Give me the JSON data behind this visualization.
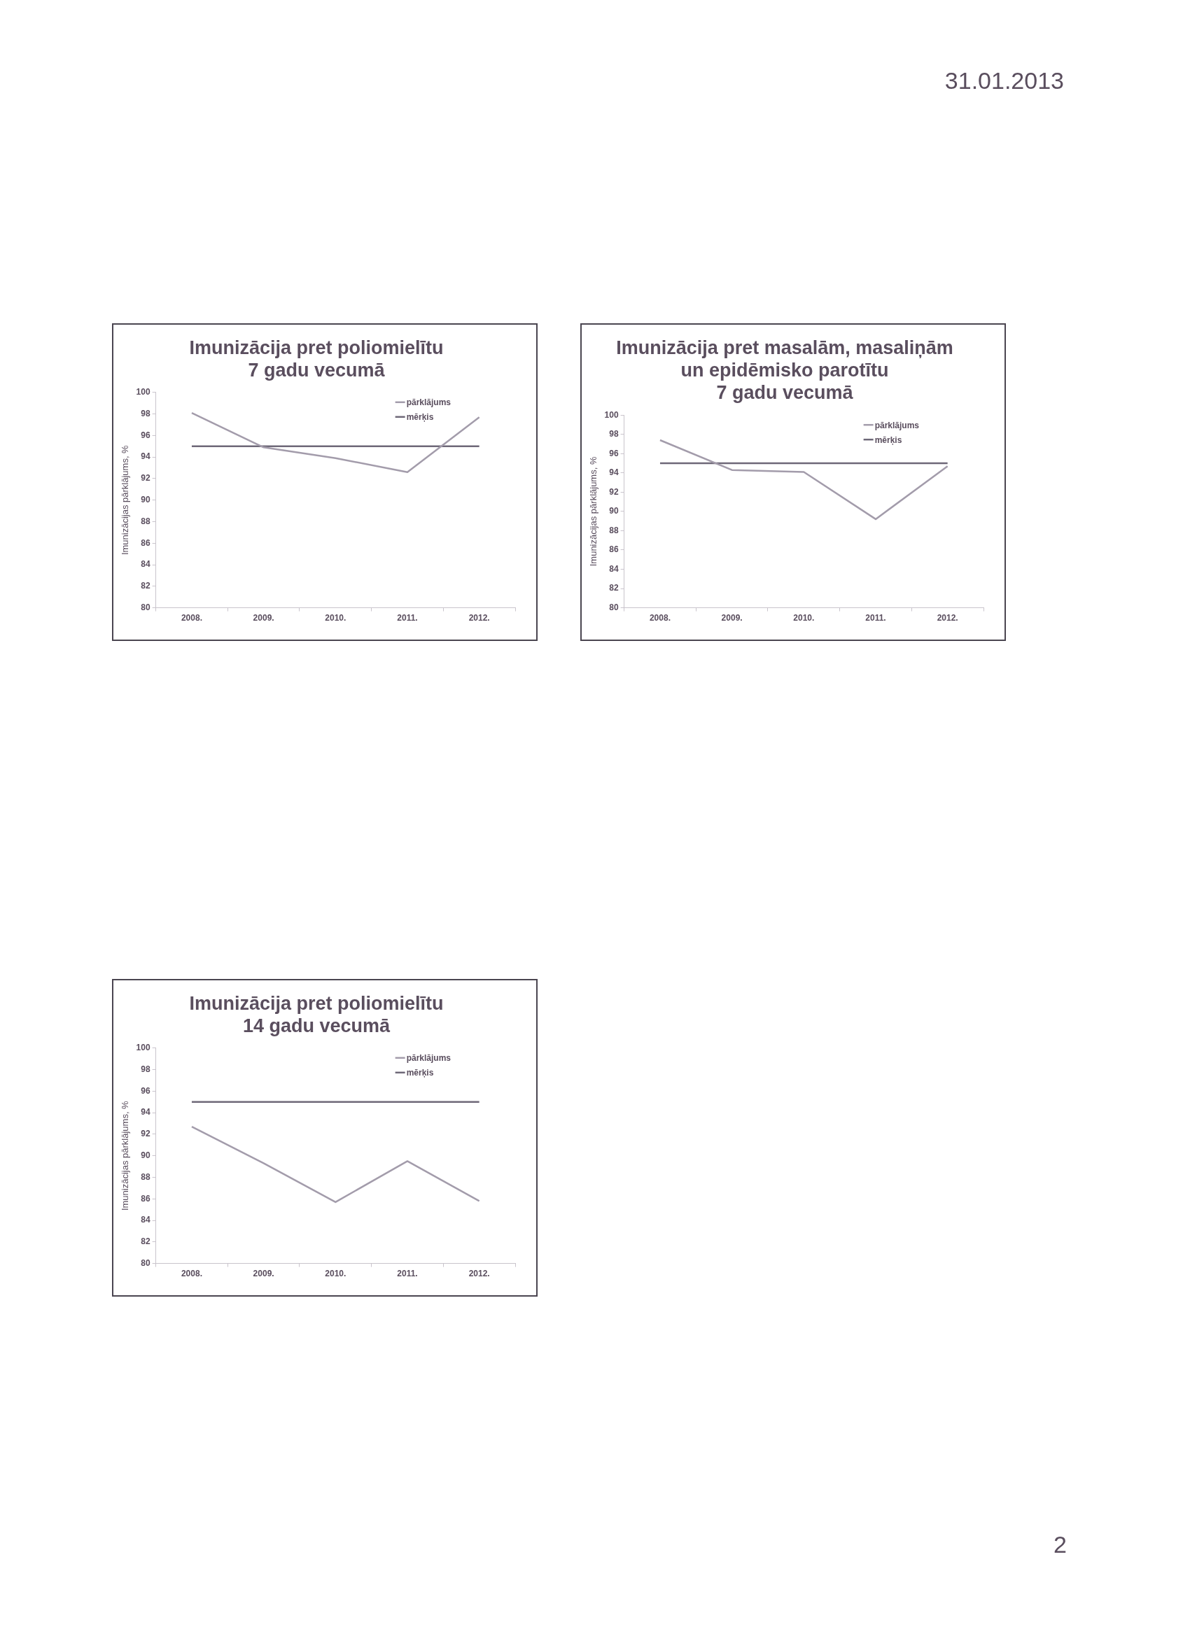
{
  "chart_data": [
    {
      "type": "line",
      "title": [
        "Imunizācija pret poliomielītu",
        "7 gadu vecumā"
      ],
      "ylabel": "Imunizācijas pārklājums, %",
      "categories": [
        "2008.",
        "2009.",
        "2010.",
        "2011.",
        "2012."
      ],
      "series": [
        {
          "name": "pārklājums",
          "color": "#a39cab",
          "values": [
            98.1,
            94.9,
            93.9,
            92.6,
            97.7
          ]
        },
        {
          "name": "mērķis",
          "color": "#6e6878",
          "values": [
            95,
            95,
            95,
            95,
            95
          ]
        }
      ],
      "ylim": [
        80,
        100
      ],
      "yticks": [
        80,
        82,
        84,
        86,
        88,
        90,
        92,
        94,
        96,
        98,
        100
      ],
      "grid": false,
      "legend": "top right",
      "marker": "none",
      "annotations": [
        "31.01.2013"
      ]
    },
    {
      "type": "line",
      "title": [
        "Imunizācija pret masalām, masaliņām",
        "un epidēmisko parotītu",
        "7 gadu vecumā"
      ],
      "ylabel": "Imunizācijas pārklājums, %",
      "categories": [
        "2008.",
        "2009.",
        "2010.",
        "2011.",
        "2012."
      ],
      "series": [
        {
          "name": "pārklājums",
          "color": "#a39cab",
          "values": [
            97.4,
            94.3,
            94.1,
            89.2,
            94.7
          ]
        },
        {
          "name": "mērķis",
          "color": "#6e6878",
          "values": [
            95,
            95,
            95,
            95,
            95
          ]
        }
      ],
      "ylim": [
        80,
        100
      ],
      "yticks": [
        80,
        82,
        84,
        86,
        88,
        90,
        92,
        94,
        96,
        98,
        100
      ],
      "grid": false,
      "legend": "top right",
      "marker": "none"
    },
    {
      "type": "line",
      "title": [
        "Imunizācija pret poliomielītu",
        "14 gadu vecumā"
      ],
      "ylabel": "Imunizācijas pārklājums, %",
      "categories": [
        "2008.",
        "2009.",
        "2010.",
        "2011.",
        "2012."
      ],
      "series": [
        {
          "name": "pārklājums",
          "color": "#a39cab",
          "values": [
            92.7,
            89.3,
            85.7,
            89.5,
            85.8
          ]
        },
        {
          "name": "mērķis",
          "color": "#6e6878",
          "values": [
            95,
            95,
            95,
            95,
            95
          ]
        }
      ],
      "ylim": [
        80,
        100
      ],
      "yticks": [
        80,
        82,
        84,
        86,
        88,
        90,
        92,
        94,
        96,
        98,
        100
      ],
      "grid": false,
      "legend": "top right",
      "marker": "none",
      "annotations": [
        "2"
      ]
    }
  ]
}
